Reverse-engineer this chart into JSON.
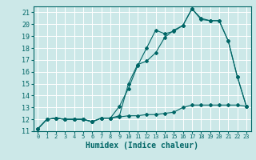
{
  "xlabel": "Humidex (Indice chaleur)",
  "bg_color": "#cce8e8",
  "grid_color": "#ffffff",
  "line_color": "#006666",
  "xlim": [
    -0.5,
    23.5
  ],
  "ylim": [
    11,
    21.5
  ],
  "xticks": [
    0,
    1,
    2,
    3,
    4,
    5,
    6,
    7,
    8,
    9,
    10,
    11,
    12,
    13,
    14,
    15,
    16,
    17,
    18,
    19,
    20,
    21,
    22,
    23
  ],
  "yticks": [
    11,
    12,
    13,
    14,
    15,
    16,
    17,
    18,
    19,
    20,
    21
  ],
  "series1_x": [
    0,
    1,
    2,
    3,
    4,
    5,
    6,
    7,
    8,
    9,
    10,
    11,
    12,
    13,
    14,
    15,
    16,
    17,
    18,
    19,
    20,
    21,
    22,
    23
  ],
  "series1_y": [
    11.2,
    12.0,
    12.1,
    12.0,
    12.0,
    12.0,
    11.8,
    12.1,
    12.1,
    13.1,
    14.6,
    16.5,
    18.0,
    19.5,
    19.2,
    19.4,
    19.9,
    21.3,
    20.4,
    20.3,
    20.3,
    18.6,
    15.6,
    13.1
  ],
  "series2_x": [
    0,
    1,
    2,
    3,
    4,
    5,
    6,
    7,
    8,
    9,
    10,
    11,
    12,
    13,
    14,
    15,
    16,
    17,
    18,
    19,
    20,
    21,
    22,
    23
  ],
  "series2_y": [
    11.2,
    12.0,
    12.1,
    12.0,
    12.0,
    12.0,
    11.8,
    12.1,
    12.1,
    12.2,
    12.3,
    12.3,
    12.4,
    12.4,
    12.5,
    12.6,
    13.0,
    13.2,
    13.2,
    13.2,
    13.2,
    13.2,
    13.2,
    13.1
  ],
  "series3_x": [
    0,
    1,
    2,
    3,
    4,
    5,
    6,
    7,
    8,
    9,
    10,
    11,
    12,
    13,
    14,
    15,
    16,
    17,
    18,
    19,
    20,
    21,
    22,
    23
  ],
  "series3_y": [
    11.2,
    12.0,
    12.1,
    12.0,
    12.0,
    12.0,
    11.8,
    12.1,
    12.1,
    12.3,
    15.0,
    16.6,
    16.9,
    17.6,
    18.9,
    19.5,
    19.9,
    21.3,
    20.5,
    20.3,
    20.3,
    18.6,
    15.6,
    13.1
  ]
}
